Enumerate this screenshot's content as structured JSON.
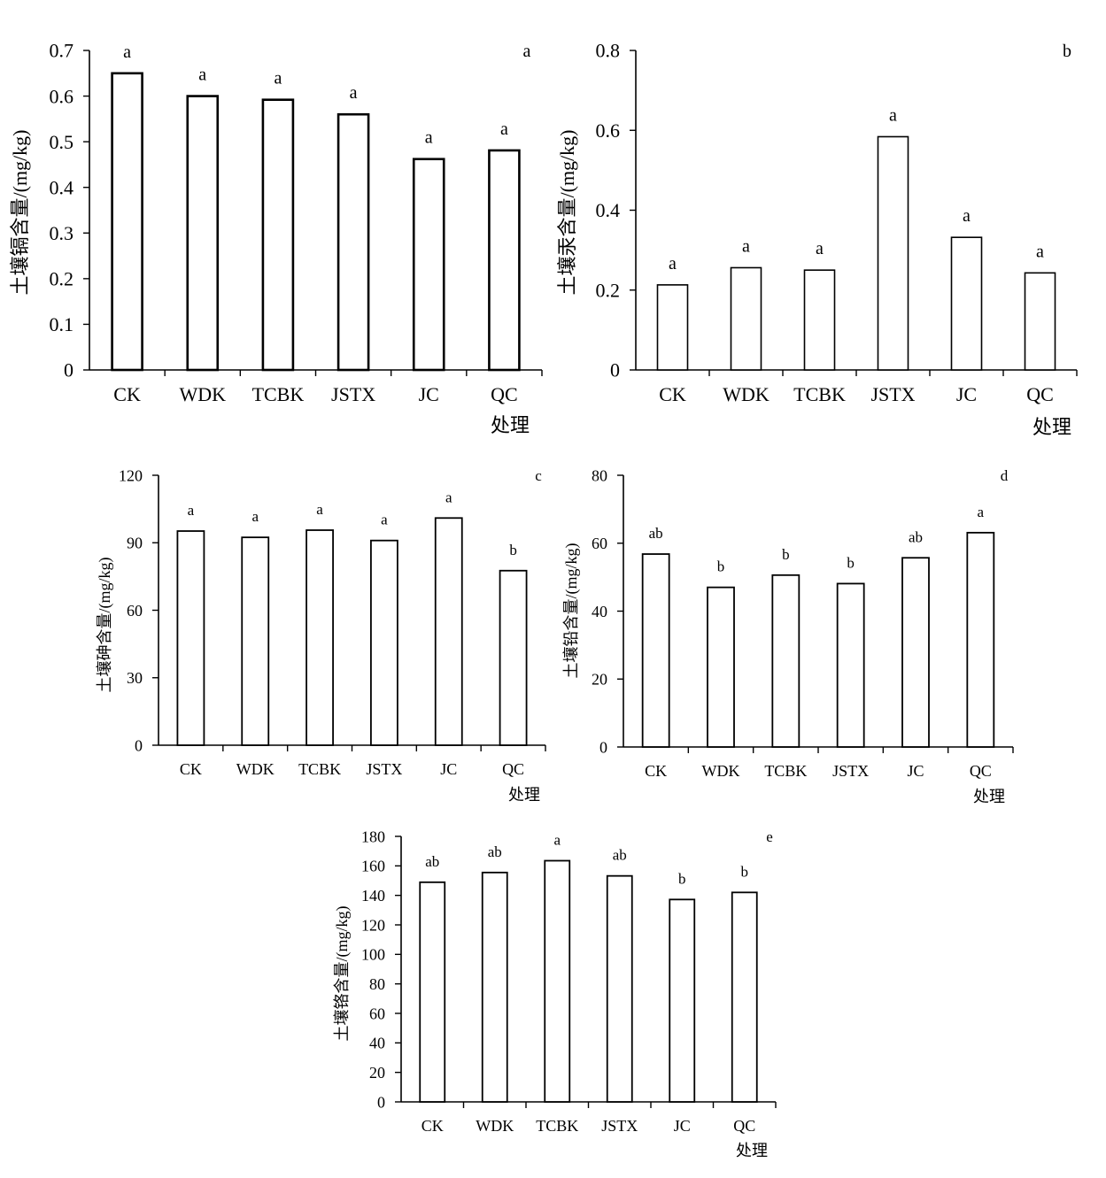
{
  "chart_data": [
    {
      "panel": "a",
      "type": "bar",
      "categories": [
        "CK",
        "WDK",
        "TCBK",
        "JSTX",
        "JC",
        "QC"
      ],
      "values": [
        0.65,
        0.6,
        0.592,
        0.56,
        0.462,
        0.481
      ],
      "significance": [
        "a",
        "a",
        "a",
        "a",
        "a",
        "a"
      ],
      "ylabel": "土壤镉含量/(mg/kg)",
      "xlabel": "处理",
      "ylim": [
        0,
        0.7
      ],
      "yticks": [
        "0",
        "0.1",
        "0.2",
        "0.3",
        "0.4",
        "0.5",
        "0.6",
        "0.7"
      ]
    },
    {
      "panel": "b",
      "type": "bar",
      "categories": [
        "CK",
        "WDK",
        "TCBK",
        "JSTX",
        "JC",
        "QC"
      ],
      "values": [
        0.213,
        0.256,
        0.25,
        0.584,
        0.332,
        0.243
      ],
      "significance": [
        "a",
        "a",
        "a",
        "a",
        "a",
        "a"
      ],
      "ylabel": "土壤汞含量/(mg/kg)",
      "xlabel": "处理",
      "ylim": [
        0,
        0.8
      ],
      "yticks": [
        "0",
        "0.2",
        "0.4",
        "0.6",
        "0.8"
      ]
    },
    {
      "panel": "c",
      "type": "bar",
      "categories": [
        "CK",
        "WDK",
        "TCBK",
        "JSTX",
        "JC",
        "QC"
      ],
      "values": [
        95.2,
        92.4,
        95.6,
        91.0,
        101.0,
        77.6
      ],
      "significance": [
        "a",
        "a",
        "a",
        "a",
        "a",
        "b"
      ],
      "ylabel": "土壤砷含量/(mg/kg)",
      "xlabel": "处理",
      "ylim": [
        0,
        120
      ],
      "yticks": [
        "0",
        "30",
        "60",
        "90",
        "120"
      ]
    },
    {
      "panel": "d",
      "type": "bar",
      "categories": [
        "CK",
        "WDK",
        "TCBK",
        "JSTX",
        "JC",
        "QC"
      ],
      "values": [
        56.8,
        47.0,
        50.6,
        48.1,
        55.7,
        63.1
      ],
      "significance": [
        "ab",
        "b",
        "b",
        "b",
        "ab",
        "a"
      ],
      "ylabel": "土壤铅含量/(mg/kg)",
      "xlabel": "处理",
      "ylim": [
        0,
        80
      ],
      "yticks": [
        "0",
        "20",
        "40",
        "60",
        "80"
      ]
    },
    {
      "panel": "e",
      "type": "bar",
      "categories": [
        "CK",
        "WDK",
        "TCBK",
        "JSTX",
        "JC",
        "QC"
      ],
      "values": [
        148.9,
        155.5,
        163.5,
        153.2,
        137.2,
        142.0
      ],
      "significance": [
        "ab",
        "ab",
        "a",
        "ab",
        "b",
        "b"
      ],
      "ylabel": "土壤铬含量/(mg/kg)",
      "xlabel": "处理",
      "ylim": [
        0,
        180
      ],
      "yticks": [
        "0",
        "20",
        "40",
        "60",
        "80",
        "100",
        "120",
        "140",
        "160",
        "180"
      ]
    }
  ]
}
